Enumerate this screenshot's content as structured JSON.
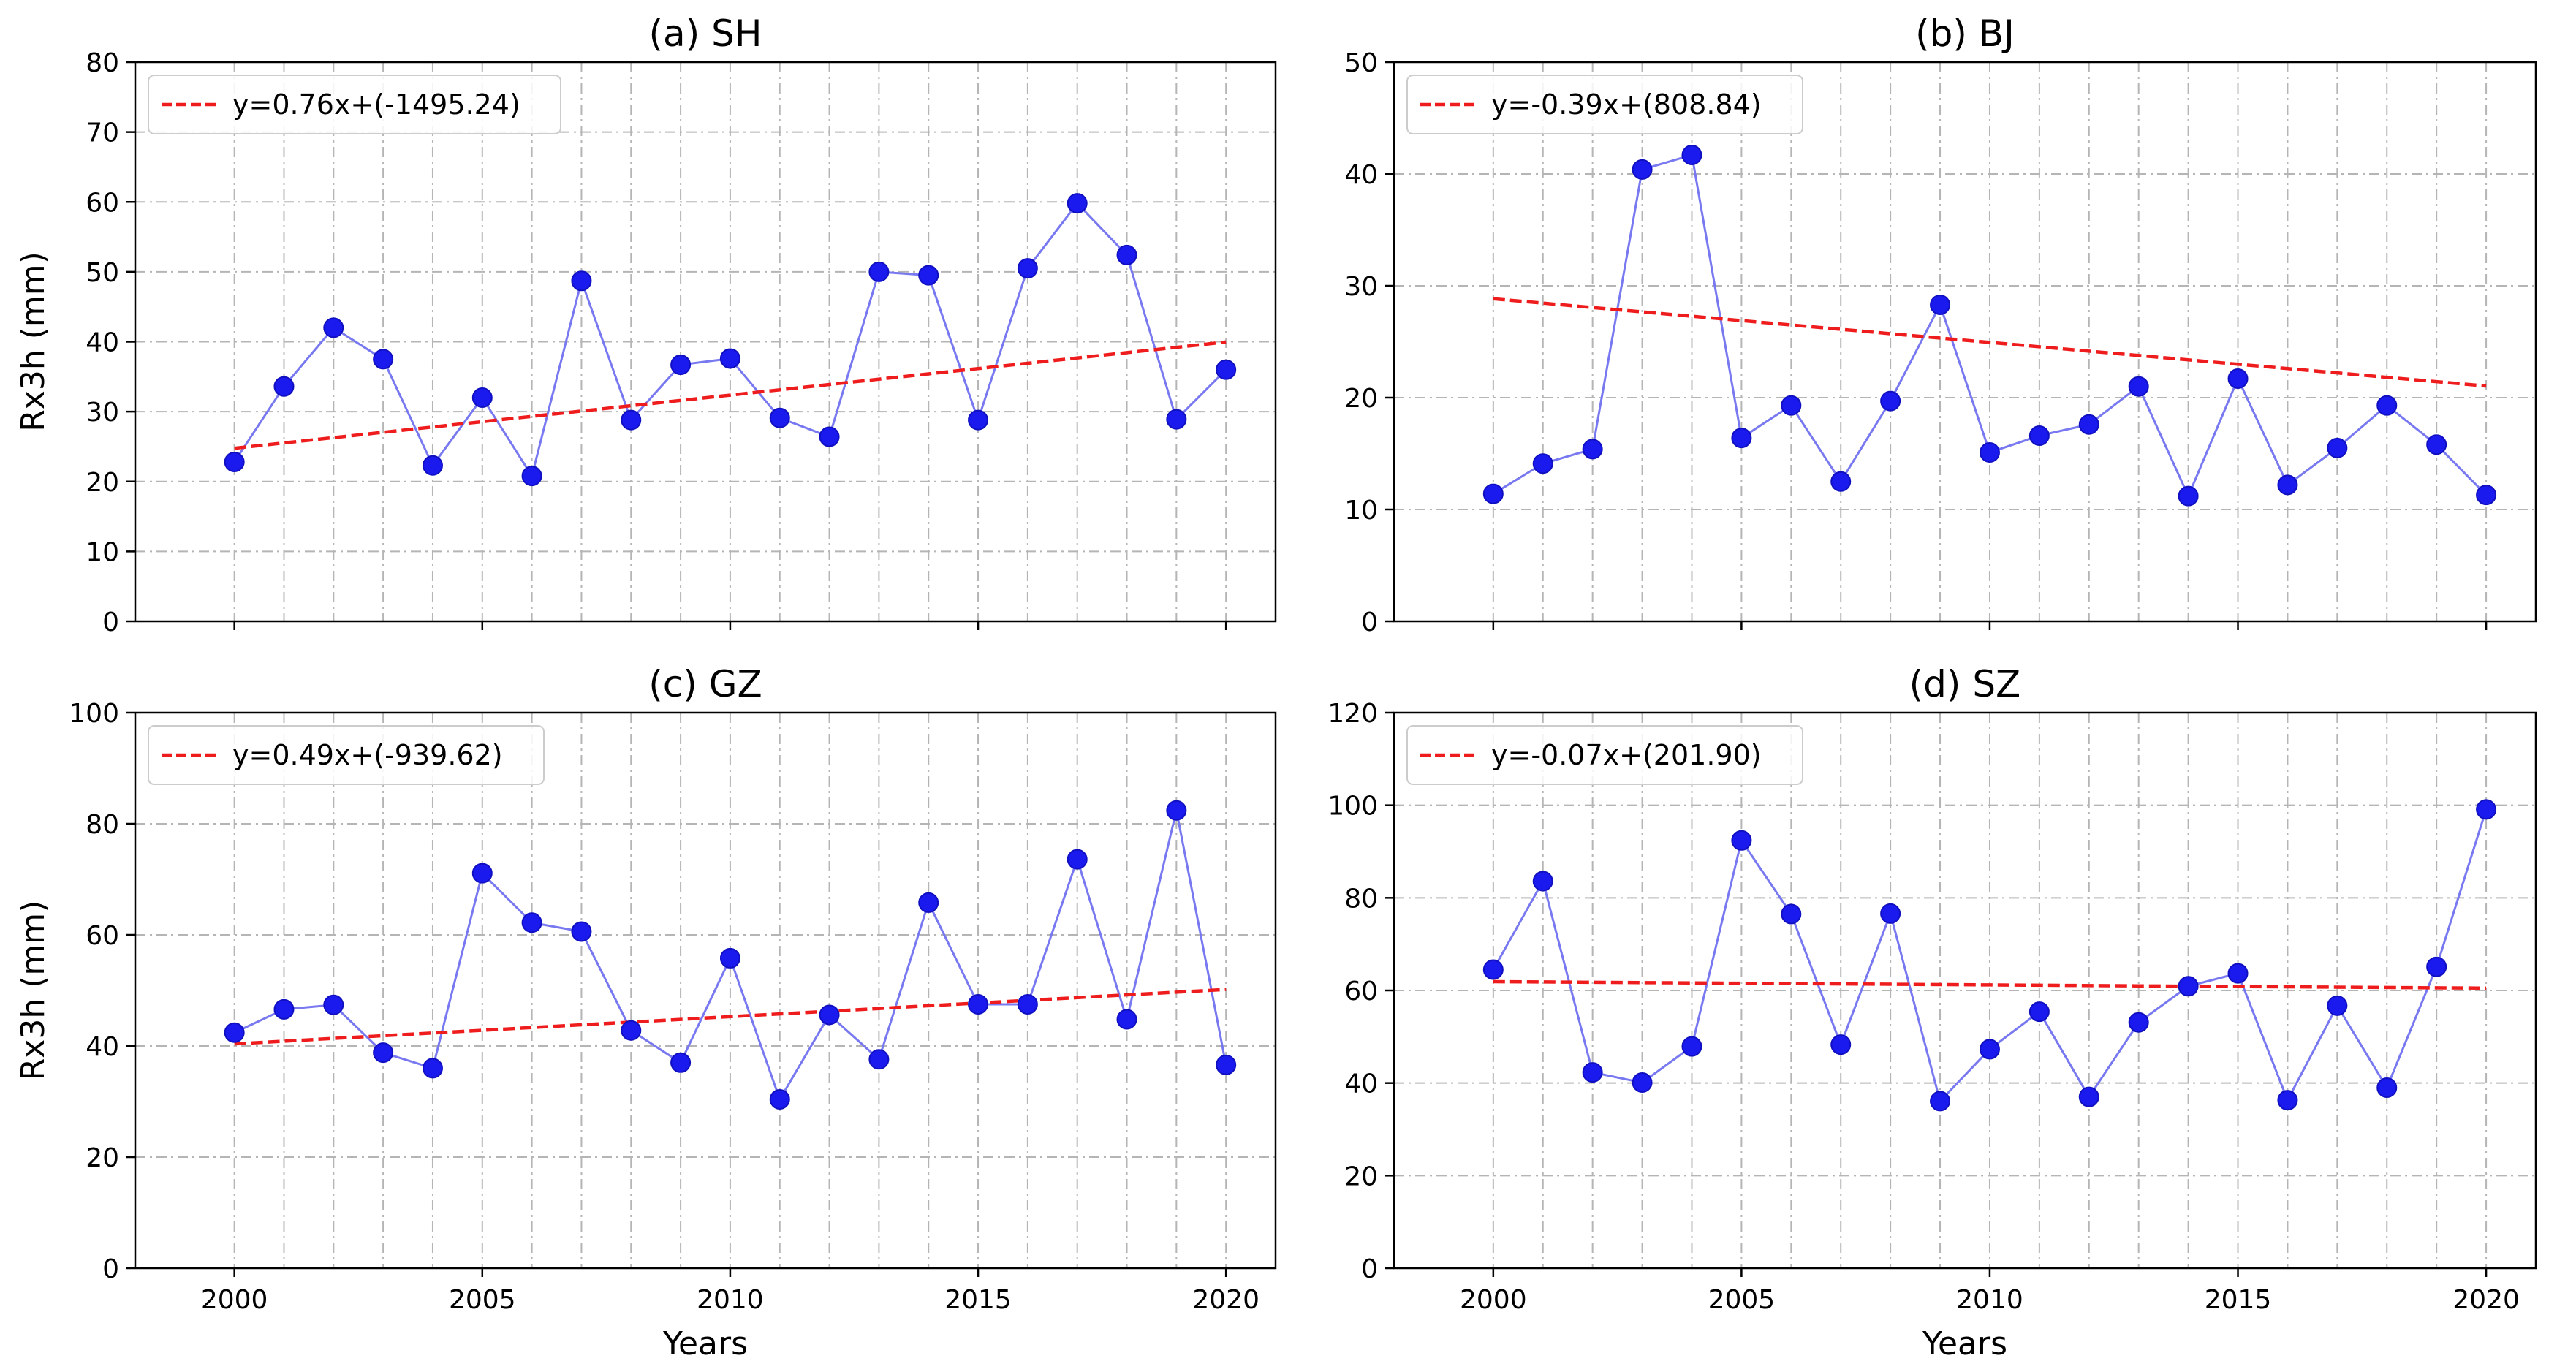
{
  "figure": {
    "xlabel": "Years",
    "ylabel": "Rx3h (mm)"
  },
  "colors": {
    "series_line": "#7878f0",
    "marker": "#1a1aee",
    "trend": "#ee1c1c",
    "grid": "#b5b5b5",
    "axis": "#000000"
  },
  "chart_data": [
    {
      "type": "line",
      "title": "(a) SH",
      "xlabel": "",
      "ylabel": "Rx3h (mm)",
      "x": [
        2000,
        2001,
        2002,
        2003,
        2004,
        2005,
        2006,
        2007,
        2008,
        2009,
        2010,
        2011,
        2012,
        2013,
        2014,
        2015,
        2016,
        2017,
        2018,
        2019,
        2020
      ],
      "y": [
        22.8,
        33.6,
        42.0,
        37.5,
        22.3,
        32.0,
        20.8,
        48.7,
        28.8,
        36.7,
        37.6,
        29.1,
        26.4,
        50.0,
        49.5,
        28.8,
        50.5,
        59.8,
        52.4,
        28.9,
        36.0
      ],
      "trend": {
        "label": "y=0.76x+(-1495.24)",
        "slope": 0.76,
        "intercept": -1495.24
      },
      "xlim": [
        1998,
        2021
      ],
      "ylim": [
        0,
        80
      ],
      "yticks": [
        0,
        10,
        20,
        30,
        40,
        50,
        60,
        70,
        80
      ],
      "xticks": [
        2000,
        2005,
        2010,
        2015,
        2020
      ],
      "legend": "top-left",
      "grid": true
    },
    {
      "type": "line",
      "title": "(b) BJ",
      "xlabel": "",
      "ylabel": "",
      "x": [
        2000,
        2001,
        2002,
        2003,
        2004,
        2005,
        2006,
        2007,
        2008,
        2009,
        2010,
        2011,
        2012,
        2013,
        2014,
        2015,
        2016,
        2017,
        2018,
        2019,
        2020
      ],
      "y": [
        11.4,
        14.1,
        15.4,
        40.4,
        41.7,
        16.4,
        19.3,
        12.5,
        19.7,
        28.3,
        15.1,
        16.6,
        17.6,
        21.0,
        11.2,
        21.7,
        12.2,
        15.5,
        19.3,
        15.8,
        11.3
      ],
      "trend": {
        "label": "y=-0.39x+(808.84)",
        "slope": -0.39,
        "intercept": 808.84
      },
      "xlim": [
        1998,
        2021
      ],
      "ylim": [
        0,
        50
      ],
      "yticks": [
        0,
        10,
        20,
        30,
        40,
        50
      ],
      "xticks": [
        2000,
        2005,
        2010,
        2015,
        2020
      ],
      "legend": "top-left",
      "grid": true
    },
    {
      "type": "line",
      "title": "(c) GZ",
      "xlabel": "Years",
      "ylabel": "Rx3h (mm)",
      "x": [
        2000,
        2001,
        2002,
        2003,
        2004,
        2005,
        2006,
        2007,
        2008,
        2009,
        2010,
        2011,
        2012,
        2013,
        2014,
        2015,
        2016,
        2017,
        2018,
        2019,
        2020
      ],
      "y": [
        42.4,
        46.6,
        47.4,
        38.8,
        36.0,
        71.1,
        62.2,
        60.6,
        42.8,
        37.0,
        55.8,
        30.4,
        45.6,
        37.6,
        65.8,
        47.5,
        47.5,
        73.6,
        44.8,
        82.4,
        36.6
      ],
      "trend": {
        "label": "y=0.49x+(-939.62)",
        "slope": 0.49,
        "intercept": -939.62
      },
      "xlim": [
        1998,
        2021
      ],
      "ylim": [
        0,
        100
      ],
      "yticks": [
        0,
        20,
        40,
        60,
        80,
        100
      ],
      "xticks": [
        2000,
        2005,
        2010,
        2015,
        2020
      ],
      "legend": "top-left",
      "grid": true
    },
    {
      "type": "line",
      "title": "(d) SZ",
      "xlabel": "Years",
      "ylabel": "",
      "x": [
        2000,
        2001,
        2002,
        2003,
        2004,
        2005,
        2006,
        2007,
        2008,
        2009,
        2010,
        2011,
        2012,
        2013,
        2014,
        2015,
        2016,
        2017,
        2018,
        2019,
        2020
      ],
      "y": [
        64.5,
        83.6,
        42.3,
        40.1,
        47.9,
        92.4,
        76.5,
        48.3,
        76.6,
        36.1,
        47.3,
        55.4,
        37.0,
        53.1,
        60.9,
        63.7,
        36.3,
        56.7,
        39.0,
        65.1,
        99.1
      ],
      "trend": {
        "label": "y=-0.07x+(201.90)",
        "slope": -0.07,
        "intercept": 201.9
      },
      "xlim": [
        1998,
        2021
      ],
      "ylim": [
        0,
        120
      ],
      "yticks": [
        0,
        20,
        40,
        60,
        80,
        100,
        120
      ],
      "xticks": [
        2000,
        2005,
        2010,
        2015,
        2020
      ],
      "legend": "top-left",
      "grid": true
    }
  ]
}
